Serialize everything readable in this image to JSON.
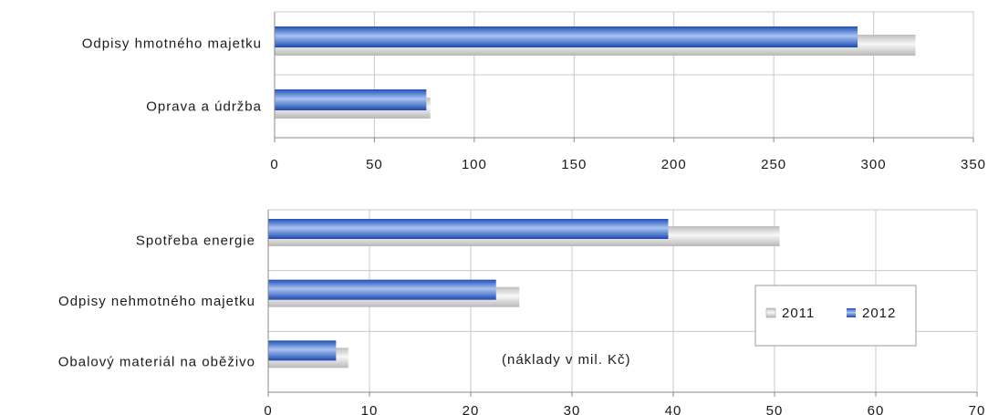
{
  "chart_data": [
    {
      "type": "bar",
      "orientation": "horizontal",
      "categories": [
        "Odpisy hmotného majetku",
        "Oprava a údržba"
      ],
      "series": [
        {
          "name": "2011",
          "values": [
            321,
            78
          ]
        },
        {
          "name": "2012",
          "values": [
            292,
            76
          ]
        }
      ],
      "xlim": [
        0,
        350
      ],
      "ticks": [
        "0",
        "50",
        "100",
        "150",
        "200",
        "250",
        "300",
        "350"
      ],
      "grid": true
    },
    {
      "type": "bar",
      "orientation": "horizontal",
      "categories": [
        "Spotřeba energie",
        "Odpisy nehmotného majetku",
        "Obalový materiál na oběživo"
      ],
      "series": [
        {
          "name": "2011",
          "values": [
            50.5,
            24.8,
            7.9
          ]
        },
        {
          "name": "2012",
          "values": [
            39.5,
            22.5,
            6.7
          ]
        }
      ],
      "xlim": [
        0,
        70
      ],
      "ticks": [
        "0",
        "10",
        "20",
        "30",
        "40",
        "50",
        "60",
        "70"
      ],
      "grid": true,
      "legend": {
        "placement": "right",
        "entries": [
          "2011",
          "2012"
        ]
      },
      "annotation": "(náklady v mil. Kč)"
    }
  ]
}
